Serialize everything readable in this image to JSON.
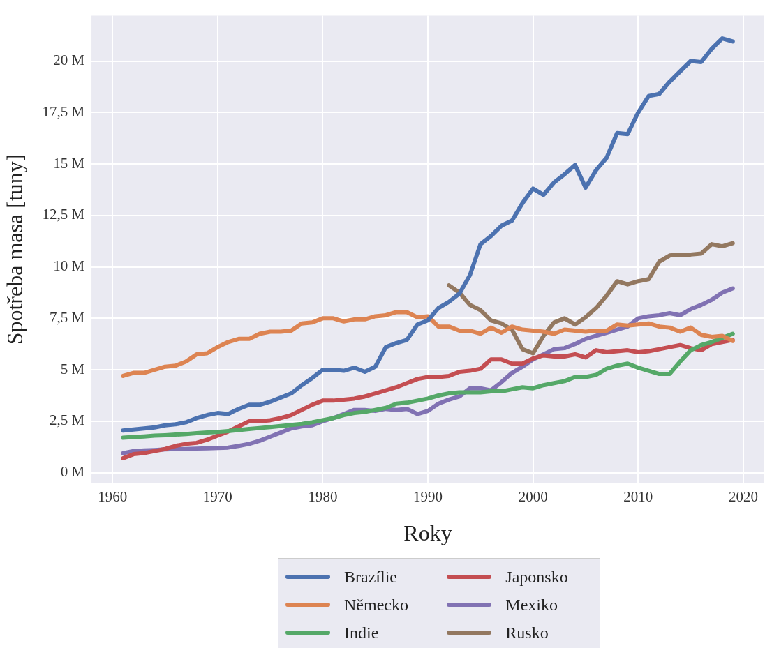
{
  "chart_data": {
    "type": "line",
    "xlabel": "Roky",
    "ylabel": "Spotřeba masa [tuny]",
    "x": [
      1961,
      1962,
      1963,
      1964,
      1965,
      1966,
      1967,
      1968,
      1969,
      1970,
      1971,
      1972,
      1973,
      1974,
      1975,
      1976,
      1977,
      1978,
      1979,
      1980,
      1981,
      1982,
      1983,
      1984,
      1985,
      1986,
      1987,
      1988,
      1989,
      1990,
      1991,
      1992,
      1993,
      1994,
      1995,
      1996,
      1997,
      1998,
      1999,
      2000,
      2001,
      2002,
      2003,
      2004,
      2005,
      2006,
      2007,
      2008,
      2009,
      2010,
      2011,
      2012,
      2013,
      2014,
      2015,
      2016,
      2017,
      2018,
      2019
    ],
    "series": [
      {
        "name": "Brazílie",
        "color": "#4c72b0",
        "values": [
          2.05,
          2.1,
          2.15,
          2.2,
          2.3,
          2.35,
          2.45,
          2.65,
          2.8,
          2.9,
          2.85,
          3.1,
          3.3,
          3.3,
          3.45,
          3.65,
          3.85,
          4.25,
          4.6,
          5.0,
          5.0,
          4.95,
          5.1,
          4.9,
          5.15,
          6.1,
          6.3,
          6.45,
          7.2,
          7.4,
          8.0,
          8.3,
          8.7,
          9.6,
          11.1,
          11.5,
          12.0,
          12.25,
          13.1,
          13.8,
          13.5,
          14.1,
          14.5,
          14.95,
          13.85,
          14.7,
          15.3,
          16.5,
          16.45,
          17.5,
          18.3,
          18.4,
          19.0,
          19.5,
          20.0,
          19.95,
          20.6,
          21.1,
          20.95
        ]
      },
      {
        "name": "Německo",
        "color": "#dd8452",
        "values": [
          4.7,
          4.85,
          4.85,
          5.0,
          5.15,
          5.2,
          5.4,
          5.75,
          5.8,
          6.1,
          6.35,
          6.5,
          6.5,
          6.75,
          6.85,
          6.85,
          6.9,
          7.25,
          7.3,
          7.5,
          7.5,
          7.35,
          7.45,
          7.45,
          7.6,
          7.65,
          7.8,
          7.8,
          7.55,
          7.6,
          7.1,
          7.1,
          6.9,
          6.9,
          6.75,
          7.05,
          6.8,
          7.1,
          6.95,
          6.9,
          6.85,
          6.75,
          6.95,
          6.9,
          6.85,
          6.9,
          6.9,
          7.2,
          7.15,
          7.2,
          7.25,
          7.1,
          7.05,
          6.85,
          7.05,
          6.7,
          6.6,
          6.65,
          6.4
        ]
      },
      {
        "name": "Indie",
        "color": "#55a868",
        "values": [
          1.7,
          1.73,
          1.76,
          1.8,
          1.82,
          1.85,
          1.88,
          1.92,
          1.95,
          1.98,
          2.02,
          2.07,
          2.12,
          2.17,
          2.22,
          2.27,
          2.32,
          2.37,
          2.45,
          2.55,
          2.65,
          2.8,
          2.9,
          2.95,
          3.05,
          3.15,
          3.35,
          3.4,
          3.5,
          3.6,
          3.75,
          3.85,
          3.9,
          3.9,
          3.9,
          3.95,
          3.95,
          4.05,
          4.15,
          4.1,
          4.25,
          4.35,
          4.45,
          4.65,
          4.65,
          4.75,
          5.05,
          5.2,
          5.3,
          5.1,
          4.95,
          4.8,
          4.8,
          5.4,
          5.95,
          6.2,
          6.35,
          6.55,
          6.75
        ]
      },
      {
        "name": "Japonsko",
        "color": "#c44e52",
        "values": [
          0.7,
          0.9,
          0.95,
          1.05,
          1.15,
          1.3,
          1.4,
          1.45,
          1.6,
          1.8,
          2.0,
          2.25,
          2.5,
          2.5,
          2.55,
          2.65,
          2.8,
          3.05,
          3.3,
          3.5,
          3.5,
          3.55,
          3.6,
          3.7,
          3.85,
          4.0,
          4.15,
          4.35,
          4.55,
          4.65,
          4.65,
          4.7,
          4.9,
          4.95,
          5.05,
          5.5,
          5.5,
          5.3,
          5.3,
          5.55,
          5.7,
          5.65,
          5.65,
          5.75,
          5.6,
          5.95,
          5.85,
          5.9,
          5.95,
          5.85,
          5.9,
          6.0,
          6.1,
          6.2,
          6.05,
          5.95,
          6.25,
          6.35,
          6.45
        ]
      },
      {
        "name": "Mexiko",
        "color": "#8172b3",
        "values": [
          0.95,
          1.05,
          1.08,
          1.1,
          1.13,
          1.15,
          1.15,
          1.17,
          1.18,
          1.2,
          1.22,
          1.3,
          1.4,
          1.55,
          1.75,
          1.95,
          2.15,
          2.25,
          2.3,
          2.5,
          2.65,
          2.85,
          3.05,
          3.05,
          3.0,
          3.1,
          3.05,
          3.1,
          2.85,
          3.0,
          3.35,
          3.55,
          3.7,
          4.1,
          4.1,
          4.0,
          4.4,
          4.85,
          5.15,
          5.5,
          5.75,
          6.0,
          6.05,
          6.25,
          6.5,
          6.65,
          6.8,
          6.95,
          7.1,
          7.5,
          7.6,
          7.65,
          7.75,
          7.65,
          7.95,
          8.15,
          8.4,
          8.75,
          8.95
        ]
      },
      {
        "name": "Rusko",
        "color": "#937860",
        "x": [
          1992,
          1993,
          1994,
          1995,
          1996,
          1997,
          1998,
          1999,
          2000,
          2001,
          2002,
          2003,
          2004,
          2005,
          2006,
          2007,
          2008,
          2009,
          2010,
          2011,
          2012,
          2013,
          2014,
          2015,
          2016,
          2017,
          2018,
          2019
        ],
        "values": [
          9.1,
          8.75,
          8.15,
          7.9,
          7.4,
          7.25,
          6.95,
          6.0,
          5.8,
          6.65,
          7.3,
          7.5,
          7.2,
          7.55,
          8.0,
          8.6,
          9.3,
          9.15,
          9.3,
          9.4,
          10.25,
          10.55,
          10.6,
          10.6,
          10.65,
          11.1,
          11.0,
          11.15
        ]
      }
    ],
    "xlim": [
      1958,
      2022
    ],
    "xticks": [
      1960,
      1970,
      1980,
      1990,
      2000,
      2010,
      2020
    ],
    "ylim": [
      -0.5,
      22.2
    ],
    "yticks": [
      {
        "value": 0,
        "label": "0 M"
      },
      {
        "value": 2.5,
        "label": "2,5 M"
      },
      {
        "value": 5,
        "label": "5 M"
      },
      {
        "value": 7.5,
        "label": "7,5 M"
      },
      {
        "value": 10,
        "label": "10 M"
      },
      {
        "value": 12.5,
        "label": "12,5 M"
      },
      {
        "value": 15,
        "label": "15 M"
      },
      {
        "value": 17.5,
        "label": "17,5 M"
      },
      {
        "value": 20,
        "label": "20 M"
      }
    ],
    "grid": true,
    "legend": "bottom",
    "marker": "none",
    "line_style": "solid"
  }
}
